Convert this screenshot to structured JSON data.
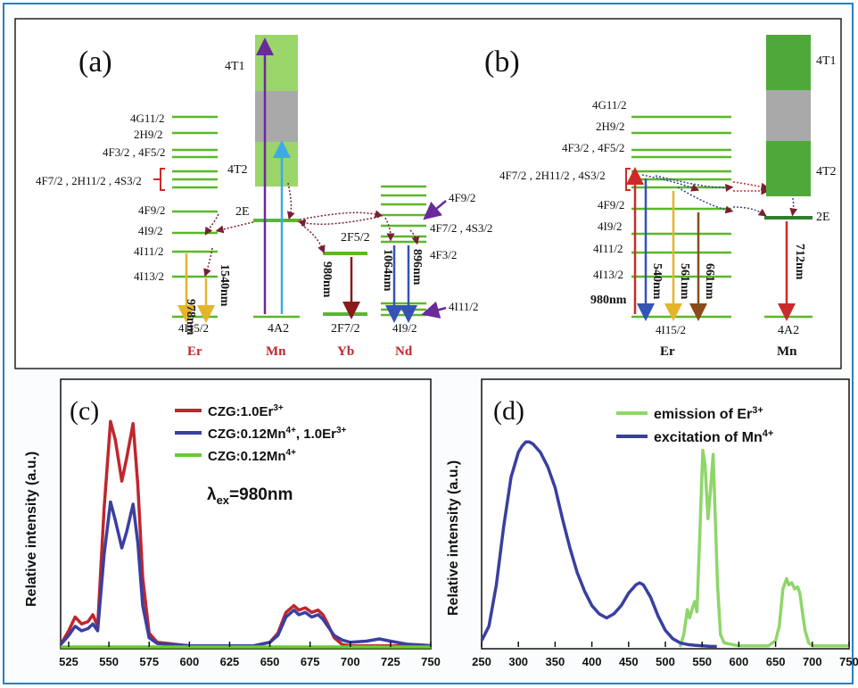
{
  "panels": {
    "a": "(a)",
    "b": "(b)",
    "c": "(c)",
    "d": "(d)"
  },
  "energy_a": {
    "er_levels": [
      "4G11/2",
      "2H9/2",
      "4F3/2 , 4F5/2",
      "4F7/2 , 2H11/2 , 4S3/2",
      "4F9/2",
      "4I9/2",
      "4I11/2",
      "4I13/2",
      "4I15/2"
    ],
    "mn_levels": [
      "4T1",
      "4T2",
      "2E",
      "4A2"
    ],
    "yb_levels": [
      "2F5/2",
      "2F7/2"
    ],
    "nd_levels": [
      "4F9/2",
      "4F7/2 , 4S3/2",
      "4F3/2",
      "4I11/2",
      "4I9/2"
    ],
    "ion_labels": [
      "Er",
      "Mn",
      "Yb",
      "Nd"
    ],
    "transitions": [
      "978nm",
      "1540nm",
      "980nm",
      "1064nm",
      "896nm"
    ]
  },
  "energy_b": {
    "er_levels": [
      "4G11/2",
      "2H9/2",
      "4F3/2 , 4F5/2",
      "4F7/2 , 2H11/2 , 4S3/2",
      "4F9/2",
      "4I9/2",
      "4I11/2",
      "4I13/2",
      "4I15/2"
    ],
    "mn_levels": [
      "4T1",
      "4T2",
      "2E",
      "4A2"
    ],
    "ion_labels": [
      "Er",
      "Mn"
    ],
    "transitions": [
      "980nm",
      "540nm",
      "561nm",
      "661nm",
      "712nm"
    ]
  },
  "chart_data": [
    {
      "type": "line",
      "panel": "(c)",
      "ylabel": "Relative intensity (a.u.)",
      "xlim": [
        520,
        750
      ],
      "xticks": [
        525,
        550,
        575,
        600,
        625,
        650,
        675,
        700,
        725,
        750
      ],
      "annotation": "λex=980nm",
      "series": [
        {
          "name": "CZG:1.0Er3+",
          "color": "#c0262c",
          "x": [
            520,
            525,
            529,
            533,
            537,
            540,
            543,
            547,
            551,
            554,
            558,
            561,
            565,
            568,
            571,
            575,
            580,
            600,
            640,
            650,
            655,
            660,
            665,
            668,
            672,
            676,
            680,
            683,
            686,
            690,
            695,
            700,
            710,
            718,
            725,
            735,
            745,
            750
          ],
          "y": [
            0.01,
            0.07,
            0.13,
            0.1,
            0.11,
            0.14,
            0.09,
            0.6,
            0.98,
            0.9,
            0.72,
            0.82,
            0.97,
            0.7,
            0.3,
            0.06,
            0.02,
            0.005,
            0.005,
            0.02,
            0.06,
            0.15,
            0.18,
            0.16,
            0.17,
            0.15,
            0.16,
            0.14,
            0.1,
            0.04,
            0.01,
            0.005,
            0.005,
            0.005,
            0.005,
            0.005,
            0.005,
            0.005
          ]
        },
        {
          "name": "CZG:0.12Mn4+, 1.0Er3+",
          "color": "#3a3fa0",
          "x": [
            520,
            525,
            529,
            533,
            537,
            540,
            543,
            547,
            551,
            554,
            558,
            561,
            565,
            568,
            571,
            575,
            580,
            600,
            640,
            650,
            655,
            660,
            665,
            668,
            672,
            676,
            680,
            683,
            686,
            690,
            695,
            700,
            710,
            718,
            725,
            735,
            745,
            750
          ],
          "y": [
            0.01,
            0.05,
            0.09,
            0.07,
            0.08,
            0.1,
            0.07,
            0.4,
            0.63,
            0.55,
            0.43,
            0.5,
            0.62,
            0.45,
            0.18,
            0.04,
            0.015,
            0.005,
            0.005,
            0.02,
            0.05,
            0.13,
            0.16,
            0.14,
            0.15,
            0.13,
            0.14,
            0.12,
            0.09,
            0.05,
            0.03,
            0.02,
            0.025,
            0.035,
            0.025,
            0.012,
            0.008,
            0.006
          ]
        },
        {
          "name": "CZG:0.12Mn4+",
          "color": "#66cc33",
          "x": [
            520,
            750
          ],
          "y": [
            0.0,
            0.0
          ]
        }
      ]
    },
    {
      "type": "line",
      "panel": "(d)",
      "ylabel": "Relative intensity (a.u.)",
      "xlim": [
        250,
        750
      ],
      "xticks": [
        250,
        300,
        350,
        400,
        450,
        500,
        550,
        600,
        650,
        700,
        750
      ],
      "series": [
        {
          "name": "emission of Er3+",
          "color": "#8ed66a",
          "x": [
            520,
            525,
            530,
            533,
            537,
            540,
            543,
            547,
            551,
            554,
            558,
            561,
            565,
            568,
            571,
            575,
            580,
            600,
            640,
            650,
            655,
            660,
            665,
            668,
            672,
            676,
            680,
            683,
            686,
            690,
            695,
            700,
            720,
            750
          ],
          "y": [
            0.0,
            0.06,
            0.18,
            0.14,
            0.19,
            0.22,
            0.17,
            0.55,
            0.95,
            0.88,
            0.62,
            0.74,
            0.93,
            0.62,
            0.3,
            0.06,
            0.02,
            0.005,
            0.005,
            0.03,
            0.1,
            0.28,
            0.33,
            0.3,
            0.31,
            0.28,
            0.29,
            0.26,
            0.18,
            0.08,
            0.02,
            0.005,
            0.005,
            0.005
          ]
        },
        {
          "name": "excitation of Mn4+",
          "color": "#3a3fa0",
          "x": [
            250,
            260,
            270,
            280,
            290,
            300,
            305,
            310,
            315,
            320,
            330,
            340,
            350,
            360,
            370,
            380,
            390,
            400,
            410,
            420,
            430,
            440,
            450,
            460,
            465,
            470,
            480,
            490,
            500,
            510,
            520,
            530,
            540,
            550,
            560,
            570
          ],
          "y": [
            0.03,
            0.1,
            0.3,
            0.58,
            0.82,
            0.94,
            0.97,
            0.99,
            0.99,
            0.98,
            0.94,
            0.87,
            0.77,
            0.62,
            0.48,
            0.36,
            0.27,
            0.2,
            0.16,
            0.14,
            0.16,
            0.2,
            0.26,
            0.3,
            0.31,
            0.3,
            0.24,
            0.15,
            0.08,
            0.04,
            0.02,
            0.012,
            0.008,
            0.005,
            0.003,
            0.002
          ]
        }
      ]
    }
  ]
}
